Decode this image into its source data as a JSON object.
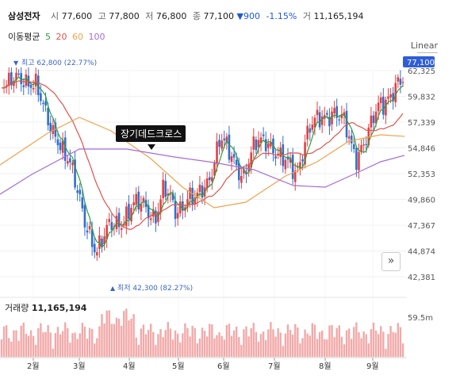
{
  "header": {
    "name": "삼성전자",
    "open_label": "시",
    "open": "77,600",
    "high_label": "고",
    "high": "77,800",
    "low_label": "저",
    "low": "76,800",
    "close_label": "종",
    "close": "77,100",
    "change": "900",
    "change_pct": "-1.15%",
    "volume_label": "거",
    "volume": "11,165,194"
  },
  "ma_legend": {
    "label": "이동평균",
    "periods": [
      {
        "value": "5",
        "color": "#2e9e3e"
      },
      {
        "value": "20",
        "color": "#e0534a"
      },
      {
        "value": "60",
        "color": "#f0a24a"
      },
      {
        "value": "100",
        "color": "#a56cd6"
      }
    ]
  },
  "scale_mode": "Linear",
  "current_price_tag": "77,100",
  "annotations": {
    "high_marker": "최고 62,800 (22.77%)",
    "low_marker": "최저 42,300 (82.27%)",
    "cross_callout": "장기데드크로스"
  },
  "volume_panel": {
    "label": "거래량",
    "value": "11,165,194",
    "axis_tick": "59.5m"
  },
  "colors": {
    "up": "#e34040",
    "down": "#2f6fd0",
    "volume": "#f2a9a9",
    "price_tag": "#2f5ed6"
  },
  "chart_data": {
    "type": "candlestick",
    "y_ticks": [
      "62,325",
      "59,832",
      "57,339",
      "54,846",
      "52,353",
      "49,860",
      "47,367",
      "44,874",
      "42,381"
    ],
    "y_range": [
      41500,
      64000
    ],
    "x_labels": [
      "2월",
      "3월",
      "4월",
      "5월",
      "6월",
      "7월",
      "8월",
      "9월"
    ],
    "moving_averages": [
      "5",
      "20",
      "60",
      "100"
    ],
    "current_price": 77100,
    "period_high": 62800,
    "period_low": 42300,
    "events": [
      "장기데드크로스"
    ]
  }
}
